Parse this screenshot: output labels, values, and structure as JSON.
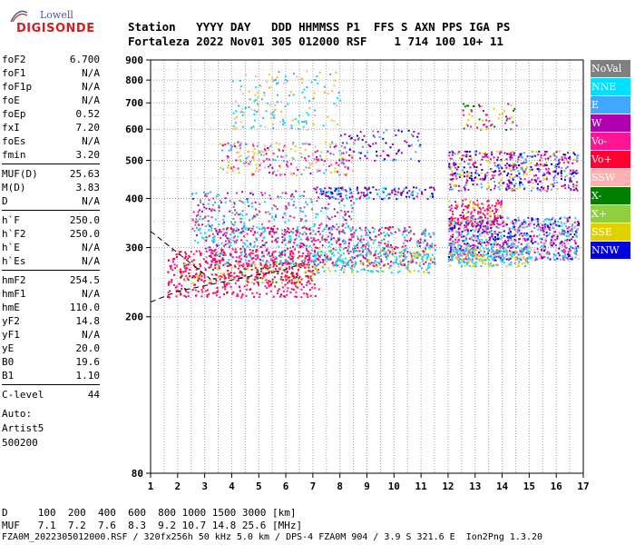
{
  "logo": {
    "line1": "Lowell",
    "line2": "DIGISONDE"
  },
  "header": {
    "labels": "Station   YYYY DAY   DDD HHMMSS P1  FFS S AXN PPS IGA PS",
    "values": "Fortaleza 2022 Nov01 305 012000 RSF    1 714 100 10+ 11"
  },
  "params": {
    "groups": [
      [
        {
          "name": "foF2",
          "value": "6.700"
        },
        {
          "name": "foF1",
          "value": "N/A"
        },
        {
          "name": "foF1p",
          "value": "N/A"
        },
        {
          "name": "foE",
          "value": "N/A"
        },
        {
          "name": "foEp",
          "value": "0.52"
        },
        {
          "name": "fxI",
          "value": "7.20"
        },
        {
          "name": "foEs",
          "value": "N/A"
        },
        {
          "name": "fmin",
          "value": "3.20"
        }
      ],
      [
        {
          "name": "MUF(D)",
          "value": "25.63"
        },
        {
          "name": "M(D)",
          "value": "3.83"
        },
        {
          "name": "D",
          "value": "N/A"
        }
      ],
      [
        {
          "name": "h`F",
          "value": "250.0"
        },
        {
          "name": "h`F2",
          "value": "250.0"
        },
        {
          "name": "h`E",
          "value": "N/A"
        },
        {
          "name": "h`Es",
          "value": "N/A"
        }
      ],
      [
        {
          "name": "hmF2",
          "value": "254.5"
        },
        {
          "name": "hmF1",
          "value": "N/A"
        },
        {
          "name": "hmE",
          "value": "110.0"
        },
        {
          "name": "yF2",
          "value": "14.8"
        },
        {
          "name": "yF1",
          "value": "N/A"
        },
        {
          "name": "yE",
          "value": "20.0"
        },
        {
          "name": "B0",
          "value": "19.6"
        },
        {
          "name": "B1",
          "value": "1.10"
        }
      ],
      [
        {
          "name": "C-level",
          "value": "44"
        }
      ]
    ],
    "auto_lines": [
      "Auto:",
      "Artist5",
      "500200"
    ]
  },
  "legend": [
    {
      "label": "NoVal",
      "color": "#808080"
    },
    {
      "label": "NNE",
      "color": "#00e0ff"
    },
    {
      "label": "E",
      "color": "#40a8ff"
    },
    {
      "label": "W",
      "color": "#b000b0"
    },
    {
      "label": "Vo-",
      "color": "#ff1493"
    },
    {
      "label": "Vo+",
      "color": "#ff0030"
    },
    {
      "label": "SSW",
      "color": "#ffb0b0"
    },
    {
      "label": "X-",
      "color": "#008000"
    },
    {
      "label": "X+",
      "color": "#90d040"
    },
    {
      "label": "SSE",
      "color": "#e0d000"
    },
    {
      "label": "NNW",
      "color": "#0000e0"
    }
  ],
  "chart_data": {
    "type": "scatter",
    "xlim": [
      1,
      17
    ],
    "ylim": [
      80,
      900
    ],
    "x_ticks": [
      1,
      2,
      3,
      4,
      5,
      6,
      7,
      8,
      9,
      10,
      11,
      12,
      13,
      14,
      15,
      16,
      17
    ],
    "y_ticks": [
      80,
      200,
      300,
      400,
      500,
      600,
      700,
      800,
      900
    ],
    "y_scale": "log",
    "grid": true,
    "legend_position": "right",
    "trace_line": [
      [
        1.0,
        218
      ],
      [
        2.0,
        232
      ],
      [
        3.0,
        240
      ],
      [
        4.0,
        248
      ],
      [
        5.0,
        256
      ],
      [
        6.0,
        264
      ],
      [
        6.7,
        275
      ]
    ],
    "echo_regions": [
      {
        "x": [
          1.6,
          7.2
        ],
        "y": [
          225,
          300
        ],
        "colors": [
          "#ff0030",
          "#ff1493"
        ],
        "n": 520
      },
      {
        "x": [
          2.0,
          7.0
        ],
        "y": [
          245,
          275
        ],
        "colors": [
          "#ff0030",
          "#008000",
          "#e0d000"
        ],
        "n": 120
      },
      {
        "x": [
          3.0,
          11.5
        ],
        "y": [
          270,
          340
        ],
        "colors": [
          "#ff0030",
          "#ff1493",
          "#b000b0",
          "#40a8ff",
          "#00e0ff"
        ],
        "n": 700
      },
      {
        "x": [
          7.0,
          11.5
        ],
        "y": [
          260,
          300
        ],
        "colors": [
          "#e0d000",
          "#00e0ff",
          "#40a8ff"
        ],
        "n": 200
      },
      {
        "x": [
          2.5,
          8.5
        ],
        "y": [
          310,
          420
        ],
        "colors": [
          "#b000b0",
          "#ff1493",
          "#40a8ff",
          "#00e0ff",
          "#808080"
        ],
        "n": 360
      },
      {
        "x": [
          3.5,
          8.5
        ],
        "y": [
          460,
          560
        ],
        "colors": [
          "#e0d000",
          "#ff1493",
          "#b000b0",
          "#40a8ff",
          "#ffb0b0"
        ],
        "n": 260
      },
      {
        "x": [
          4.0,
          8.0
        ],
        "y": [
          600,
          850
        ],
        "colors": [
          "#40a8ff",
          "#00e0ff",
          "#ffb0b0",
          "#e0d000"
        ],
        "n": 160
      },
      {
        "x": [
          7.0,
          11.5
        ],
        "y": [
          400,
          430
        ],
        "colors": [
          "#0000e0",
          "#b000b0",
          "#00e0ff"
        ],
        "n": 160
      },
      {
        "x": [
          8.0,
          11.0
        ],
        "y": [
          500,
          600
        ],
        "colors": [
          "#0000e0",
          "#40a8ff",
          "#b000b0"
        ],
        "n": 80
      },
      {
        "x": [
          12.0,
          16.8
        ],
        "y": [
          280,
          360
        ],
        "colors": [
          "#b000b0",
          "#ff1493",
          "#40a8ff",
          "#00e0ff",
          "#0000e0",
          "#ffb0b0"
        ],
        "n": 900
      },
      {
        "x": [
          12.0,
          15.0
        ],
        "y": [
          270,
          300
        ],
        "colors": [
          "#00e0ff",
          "#40a8ff",
          "#e0d000"
        ],
        "n": 200
      },
      {
        "x": [
          12.0,
          14.0
        ],
        "y": [
          340,
          400
        ],
        "colors": [
          "#ff1493",
          "#b000b0",
          "#ff0030",
          "#e0d000"
        ],
        "n": 160
      },
      {
        "x": [
          12.0,
          16.8
        ],
        "y": [
          420,
          530
        ],
        "colors": [
          "#b000b0",
          "#0000e0",
          "#e0d000",
          "#ff1493",
          "#40a8ff"
        ],
        "n": 520
      },
      {
        "x": [
          12.5,
          14.5
        ],
        "y": [
          600,
          700
        ],
        "colors": [
          "#008000",
          "#b000b0",
          "#ff1493",
          "#e0d000"
        ],
        "n": 60
      }
    ]
  },
  "footer": {
    "d_line": "D     100  200  400  600  800 1000 1500 3000 [km]",
    "muf_line": "MUF   7.1  7.2  7.6  8.3  9.2 10.7 14.8 25.6 [MHz]",
    "info_line": "FZA0M_2022305012000.RSF / 320fx256h 50 kHz 5.0 km / DPS-4 FZA0M 904 / 3.9 S 321.6 E  Ion2Png 1.3.20"
  }
}
